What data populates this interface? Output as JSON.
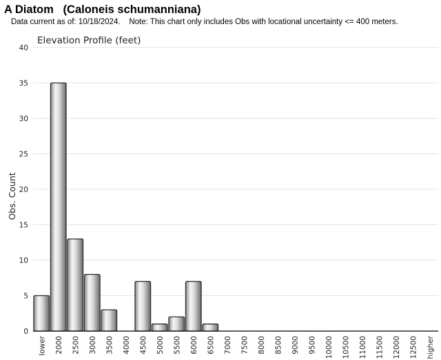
{
  "header": {
    "title": "A Diatom   (Caloneis schumanniana)",
    "subtitle": "Data current as of: 10/18/2024.    Note: This chart only includes Obs with locational uncertainty <= 400 meters."
  },
  "chart_data": {
    "type": "bar",
    "title": "Elevation Profile (feet)",
    "xlabel": "",
    "ylabel": "Obs. Count",
    "ylim": [
      0,
      40
    ],
    "yticks": [
      0,
      5,
      10,
      15,
      20,
      25,
      30,
      35,
      40
    ],
    "grid": true,
    "legend": "none",
    "categories": [
      "lower",
      "2000",
      "2500",
      "3000",
      "3500",
      "4000",
      "4500",
      "5000",
      "5500",
      "6000",
      "6500",
      "7000",
      "7500",
      "8000",
      "8500",
      "9000",
      "9500",
      "10000",
      "10500",
      "11000",
      "11500",
      "12000",
      "12500",
      "higher"
    ],
    "values": [
      5,
      35,
      13,
      8,
      3,
      0,
      7,
      1,
      2,
      7,
      1,
      0,
      0,
      0,
      0,
      0,
      0,
      0,
      0,
      0,
      0,
      0,
      0,
      0
    ],
    "colors": {
      "bar_light": "#f4f4f4",
      "bar_dark": "#7a7a7a",
      "bar_edge": "#2b2b2b",
      "grid": "#e3e3e3",
      "axis": "#000000"
    }
  }
}
